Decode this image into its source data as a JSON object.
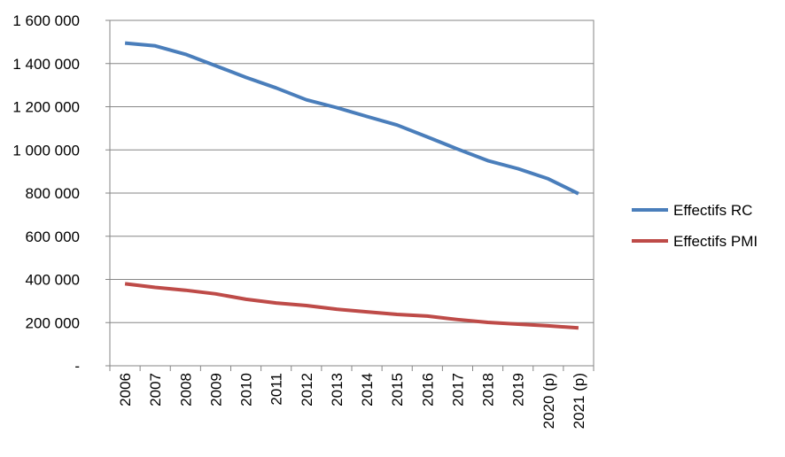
{
  "chart_data": {
    "type": "line",
    "categories": [
      "2006",
      "2007",
      "2008",
      "2009",
      "2010",
      "2011",
      "2012",
      "2013",
      "2014",
      "2015",
      "2016",
      "2017",
      "2018",
      "2019",
      "2020 (p)",
      "2021 (p)"
    ],
    "y_tick_labels": [
      "-",
      "200 000",
      "400 000",
      "600 000",
      "800 000",
      "1 000 000",
      "1 200 000",
      "1 400 000",
      "1 600 000"
    ],
    "ylim": [
      0,
      1600000
    ],
    "y_tick_step": 200000,
    "grid": true,
    "legend_position": "right",
    "series": [
      {
        "name": "Effectifs RC",
        "color": "#4a7ebb",
        "values": [
          1495000,
          1482000,
          1443000,
          1390000,
          1336000,
          1287000,
          1232000,
          1196000,
          1155000,
          1115000,
          1060000,
          1004000,
          950000,
          913000,
          866000,
          797000
        ]
      },
      {
        "name": "Effectifs PMI",
        "color": "#be4b48",
        "values": [
          380000,
          363000,
          350000,
          333000,
          308000,
          291000,
          279000,
          262000,
          250000,
          238000,
          230000,
          214000,
          201000,
          193000,
          185000,
          175000
        ]
      }
    ]
  }
}
